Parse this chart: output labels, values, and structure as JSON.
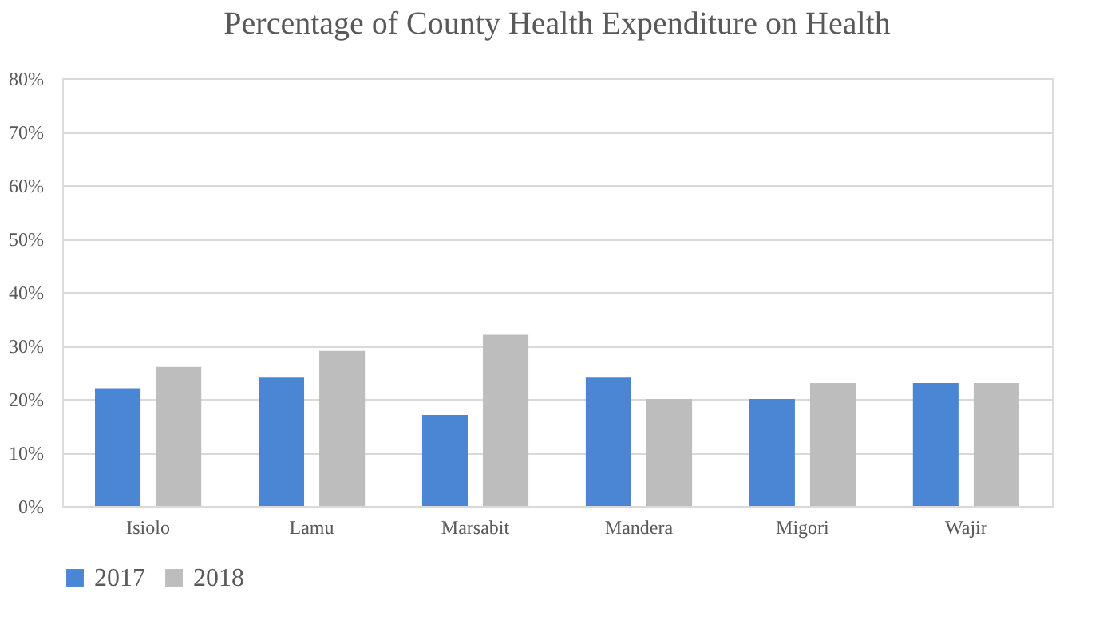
{
  "chart_data": {
    "type": "bar",
    "title": "Percentage of County Health Expenditure on Health",
    "categories": [
      "Isiolo",
      "Lamu",
      "Marsabit",
      "Mandera",
      "Migori",
      "Wajir"
    ],
    "series": [
      {
        "name": "2017",
        "color": "#4a86d4",
        "values": [
          22,
          24,
          17,
          24,
          20,
          23
        ]
      },
      {
        "name": "2018",
        "color": "#bdbdbd",
        "values": [
          26,
          29,
          32,
          20,
          23,
          23
        ]
      }
    ],
    "ylim": [
      0,
      80
    ],
    "yticks": [
      {
        "value": 0,
        "label": "0%"
      },
      {
        "value": 10,
        "label": "10%"
      },
      {
        "value": 20,
        "label": "20%"
      },
      {
        "value": 30,
        "label": "30%"
      },
      {
        "value": 40,
        "label": "40%"
      },
      {
        "value": 50,
        "label": "50%"
      },
      {
        "value": 60,
        "label": "60%"
      },
      {
        "value": 70,
        "label": "70%"
      },
      {
        "value": 80,
        "label": "80%"
      }
    ],
    "grid": "y",
    "legend": "bottom"
  }
}
